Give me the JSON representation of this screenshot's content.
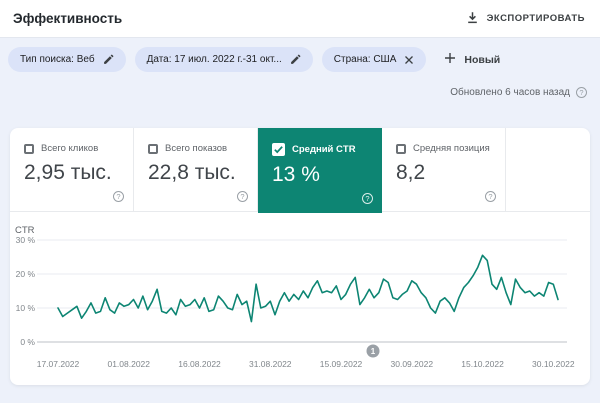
{
  "header": {
    "title": "Эффективность",
    "export_label": "ЭКСПОРТИРОВАТЬ"
  },
  "filters": {
    "chips": [
      {
        "id": "search-type",
        "label": "Тип поиска: Веб",
        "action": "edit"
      },
      {
        "id": "date-range",
        "label": "Дата: 17 июл. 2022 г.-31 окт...",
        "action": "edit"
      },
      {
        "id": "country",
        "label": "Страна: США",
        "action": "remove"
      }
    ],
    "new_button_label": "Новый"
  },
  "status": {
    "updated_text": "Обновлено 6 часов назад"
  },
  "metrics": [
    {
      "id": "total-clicks",
      "label": "Всего кликов",
      "value": "2,95 тыс.",
      "checked": false,
      "selected": false
    },
    {
      "id": "total-impressions",
      "label": "Всего показов",
      "value": "22,8 тыс.",
      "checked": false,
      "selected": false
    },
    {
      "id": "average-ctr",
      "label": "Средний CTR",
      "value": "13 %",
      "checked": true,
      "selected": true
    },
    {
      "id": "average-position",
      "label": "Средняя позиция",
      "value": "8,2",
      "checked": false,
      "selected": false
    }
  ],
  "colors": {
    "accent_teal": "#0d8573",
    "line_teal": "#0d8573",
    "badge_gray": "#9aa0a6",
    "chip_bg": "#dbe3f8",
    "page_bg": "#edf1fa",
    "grid_line": "#e9ebf0",
    "axis_line": "#bcc0c7",
    "tick_text": "#80868b"
  },
  "chart_data": {
    "type": "line",
    "title": "CTR",
    "series_name": "Средний CTR",
    "unit": "%",
    "x_start": "17.07.2022",
    "x_end": "31.10.2022",
    "x_tick_labels": [
      "17.07.2022",
      "01.08.2022",
      "16.08.2022",
      "31.08.2022",
      "15.09.2022",
      "30.09.2022",
      "15.10.2022",
      "30.10.2022"
    ],
    "x_tick_day_indices": [
      0,
      15,
      30,
      45,
      60,
      75,
      90,
      105
    ],
    "y_ticks": [
      {
        "value": 30,
        "label": "30 %"
      },
      {
        "value": 20,
        "label": "20 %"
      },
      {
        "value": 10,
        "label": "10 %"
      },
      {
        "value": 0,
        "label": "0 %"
      }
    ],
    "ylim": [
      0,
      30
    ],
    "grid": true,
    "legend_position": "none",
    "annotation_marker": {
      "label": "1"
    },
    "values": [
      10,
      7.5,
      8.5,
      9.5,
      10.5,
      7,
      9,
      11.5,
      8.5,
      9,
      13,
      9.5,
      8.5,
      11.5,
      10.5,
      11,
      12.5,
      10,
      13.5,
      9.5,
      12,
      15.5,
      9,
      8.5,
      10,
      8,
      12.5,
      10.5,
      11,
      12.5,
      10,
      13,
      9,
      9.5,
      13.5,
      12,
      10,
      9.5,
      14,
      11,
      12,
      6,
      17,
      10,
      10.5,
      12,
      8,
      12,
      14.5,
      12,
      14,
      12.5,
      15,
      13,
      16,
      18,
      14.5,
      15,
      14.5,
      16.5,
      12.5,
      14,
      17,
      19,
      11,
      13,
      15.5,
      13,
      14.5,
      18.5,
      17.5,
      13,
      12.5,
      14,
      15,
      18,
      17,
      14.5,
      13,
      10,
      8.5,
      12,
      13,
      11.5,
      9,
      13,
      16,
      17.5,
      19.5,
      22,
      25.5,
      24,
      17,
      15.5,
      19,
      14.5,
      11,
      18.5,
      16,
      14.5,
      15,
      13.5,
      14.5,
      13.5,
      17.5,
      17,
      12.5
    ]
  }
}
